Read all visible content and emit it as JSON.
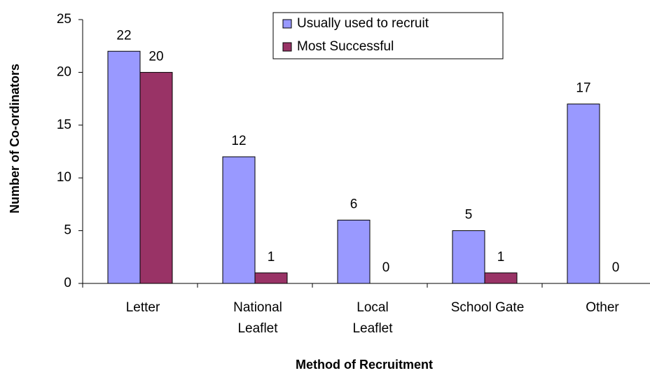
{
  "chart_data": {
    "type": "bar",
    "categories": [
      [
        "Letter"
      ],
      [
        "National",
        "Leaflet"
      ],
      [
        "Local",
        "Leaflet"
      ],
      [
        "School Gate"
      ],
      [
        "Other"
      ]
    ],
    "series": [
      {
        "name": "Usually used to recruit",
        "color": "#9999ff",
        "values": [
          22,
          12,
          6,
          5,
          17
        ]
      },
      {
        "name": "Most Successful",
        "color": "#993366",
        "values": [
          20,
          1,
          0,
          1,
          0
        ]
      }
    ],
    "ylim": [
      0,
      25
    ],
    "yticks": [
      0,
      5,
      10,
      15,
      20,
      25
    ],
    "xlabel": "Method of Recruitment",
    "ylabel": "Number of Co-ordinators",
    "legend": "top"
  }
}
